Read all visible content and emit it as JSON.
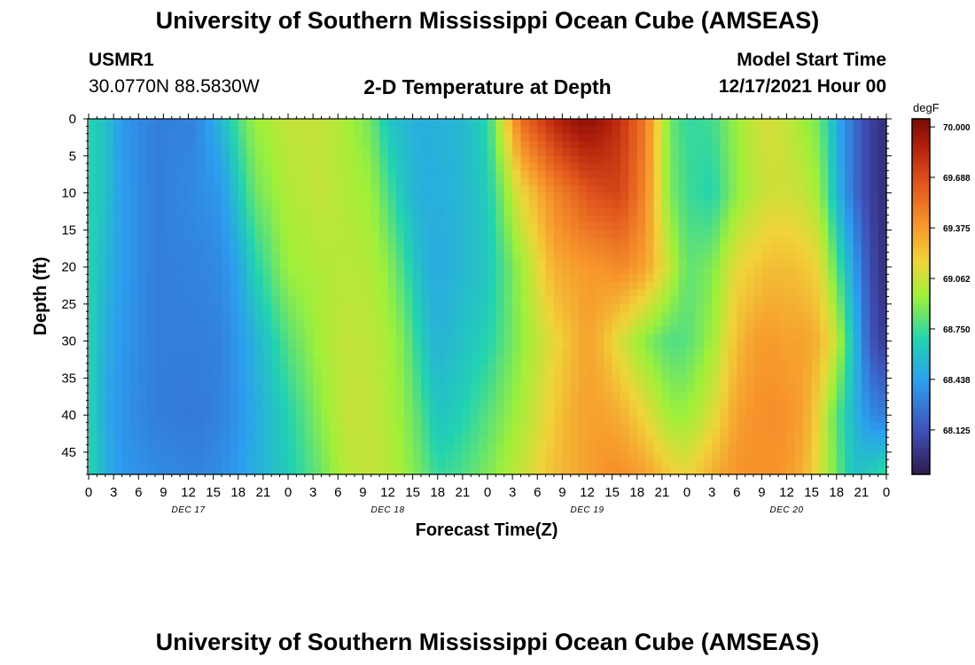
{
  "page": {
    "title": "University of Southern Mississippi Ocean Cube (AMSEAS)",
    "station_id": "USMR1",
    "station_coords": "30.0770N  88.5830W",
    "plot_title": "2-D Temperature at Depth",
    "model_start_label": "Model Start Time",
    "model_start_value": "12/17/2021 Hour 00",
    "footer_title": "University of Southern Mississippi Ocean Cube (AMSEAS)"
  },
  "chart_data": {
    "type": "heatmap",
    "title": "2-D Temperature at Depth",
    "xlabel": "Forecast Time(Z)",
    "ylabel": "Depth (ft)",
    "x_ticks": [
      "0",
      "3",
      "6",
      "9",
      "12",
      "15",
      "18",
      "21",
      "0",
      "3",
      "6",
      "9",
      "12",
      "15",
      "18",
      "21",
      "0",
      "3",
      "6",
      "9",
      "12",
      "15",
      "18",
      "21",
      "0",
      "3",
      "6",
      "9",
      "12",
      "15",
      "18",
      "21",
      "0"
    ],
    "x_day_labels": [
      "DEC 17",
      "DEC 18",
      "DEC 19",
      "DEC 20"
    ],
    "xlim_hours": [
      0,
      96
    ],
    "y_ticks": [
      "0",
      "5",
      "10",
      "15",
      "20",
      "25",
      "30",
      "35",
      "40",
      "45"
    ],
    "ylim_ft": [
      0,
      48
    ],
    "colorbar": {
      "unit": "degF",
      "ticks": [
        "70.000",
        "69.688",
        "69.375",
        "69.062",
        "68.750",
        "68.438",
        "68.125"
      ],
      "range": [
        67.85,
        70.05
      ]
    },
    "approx_temperature_degF": {
      "hours": [
        0,
        2,
        4,
        8,
        13,
        16,
        18,
        20,
        24,
        28,
        31,
        34,
        36,
        38,
        40,
        42,
        45,
        48,
        52,
        56,
        58,
        60,
        62,
        64,
        67,
        70,
        72,
        75,
        78,
        80,
        82,
        84,
        86,
        88,
        90,
        92,
        94,
        96
      ],
      "depths_ft": [
        0,
        10,
        20,
        30,
        40,
        48
      ],
      "values": [
        [
          68.7,
          68.7,
          68.7,
          68.7,
          68.7,
          68.72
        ],
        [
          68.6,
          68.6,
          68.55,
          68.5,
          68.48,
          68.52
        ],
        [
          68.4,
          68.42,
          68.42,
          68.4,
          68.38,
          68.4
        ],
        [
          68.3,
          68.3,
          68.3,
          68.3,
          68.3,
          68.35
        ],
        [
          68.32,
          68.35,
          68.32,
          68.3,
          68.28,
          68.32
        ],
        [
          68.55,
          68.4,
          68.35,
          68.32,
          68.32,
          68.36
        ],
        [
          68.78,
          68.62,
          68.45,
          68.4,
          68.38,
          68.42
        ],
        [
          68.95,
          68.85,
          68.68,
          68.52,
          68.48,
          68.5
        ],
        [
          69.05,
          69.0,
          68.95,
          68.8,
          68.68,
          68.65
        ],
        [
          69.05,
          69.05,
          69.0,
          68.98,
          68.92,
          68.85
        ],
        [
          68.98,
          69.0,
          69.02,
          69.05,
          69.05,
          69.02
        ],
        [
          68.85,
          68.95,
          69.0,
          69.03,
          69.05,
          69.05
        ],
        [
          68.62,
          68.78,
          68.92,
          68.98,
          69.0,
          69.02
        ],
        [
          68.55,
          68.6,
          68.75,
          68.88,
          68.92,
          68.95
        ],
        [
          68.5,
          68.5,
          68.55,
          68.65,
          68.78,
          68.85
        ],
        [
          68.52,
          68.5,
          68.48,
          68.52,
          68.6,
          68.72
        ],
        [
          68.55,
          68.55,
          68.55,
          68.6,
          68.68,
          68.78
        ],
        [
          68.7,
          68.65,
          68.62,
          68.68,
          68.8,
          68.88
        ],
        [
          69.55,
          69.15,
          68.95,
          68.92,
          68.98,
          69.05
        ],
        [
          69.85,
          69.45,
          69.3,
          69.15,
          69.2,
          69.25
        ],
        [
          69.95,
          69.55,
          69.35,
          69.25,
          69.3,
          69.3
        ],
        [
          70.0,
          69.65,
          69.38,
          69.35,
          69.35,
          69.35
        ],
        [
          69.92,
          69.7,
          69.4,
          69.25,
          69.35,
          69.4
        ],
        [
          69.8,
          69.72,
          69.45,
          69.1,
          69.3,
          69.42
        ],
        [
          69.5,
          69.45,
          69.35,
          68.9,
          69.15,
          69.35
        ],
        [
          68.85,
          68.88,
          69.05,
          68.78,
          68.95,
          69.2
        ],
        [
          68.72,
          68.75,
          68.82,
          68.8,
          68.95,
          69.15
        ],
        [
          68.75,
          68.68,
          68.88,
          68.95,
          69.1,
          69.3
        ],
        [
          68.95,
          68.92,
          69.15,
          69.25,
          69.35,
          69.4
        ],
        [
          69.05,
          69.02,
          69.2,
          69.35,
          69.4,
          69.4
        ],
        [
          69.1,
          69.08,
          69.25,
          69.38,
          69.42,
          69.4
        ],
        [
          69.05,
          69.08,
          69.25,
          69.35,
          69.4,
          69.38
        ],
        [
          68.95,
          69.05,
          69.22,
          69.35,
          69.35,
          69.3
        ],
        [
          68.85,
          68.95,
          69.15,
          69.28,
          69.15,
          69.1
        ],
        [
          68.5,
          68.55,
          68.8,
          69.05,
          68.8,
          68.85
        ],
        [
          68.25,
          68.25,
          68.45,
          68.6,
          68.55,
          68.6
        ],
        [
          68.05,
          68.05,
          68.1,
          68.15,
          68.35,
          68.65
        ],
        [
          67.95,
          67.95,
          67.95,
          68.0,
          68.3,
          68.75
        ]
      ]
    }
  }
}
